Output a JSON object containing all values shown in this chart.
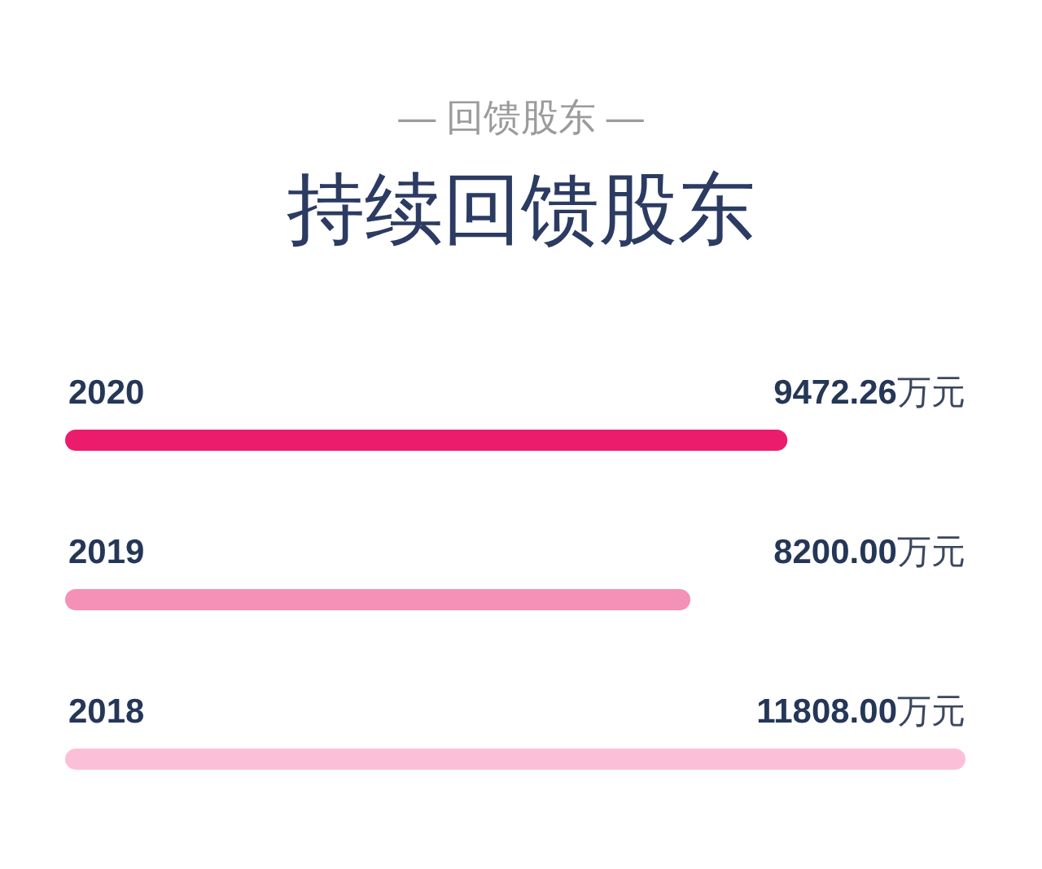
{
  "chart_data": {
    "type": "bar",
    "orientation": "horizontal",
    "subtitle": "— 回馈股东 —",
    "title": "持续回馈股东",
    "categories": [
      "2020",
      "2019",
      "2018"
    ],
    "values": [
      9472.26,
      8200.0,
      11808.0
    ],
    "colors": [
      "#ec1c6c",
      "#f590b6",
      "#fbc0d7"
    ],
    "value_labels": [
      "9472.26万元",
      "8200.00万元",
      "11808.00万元"
    ]
  }
}
